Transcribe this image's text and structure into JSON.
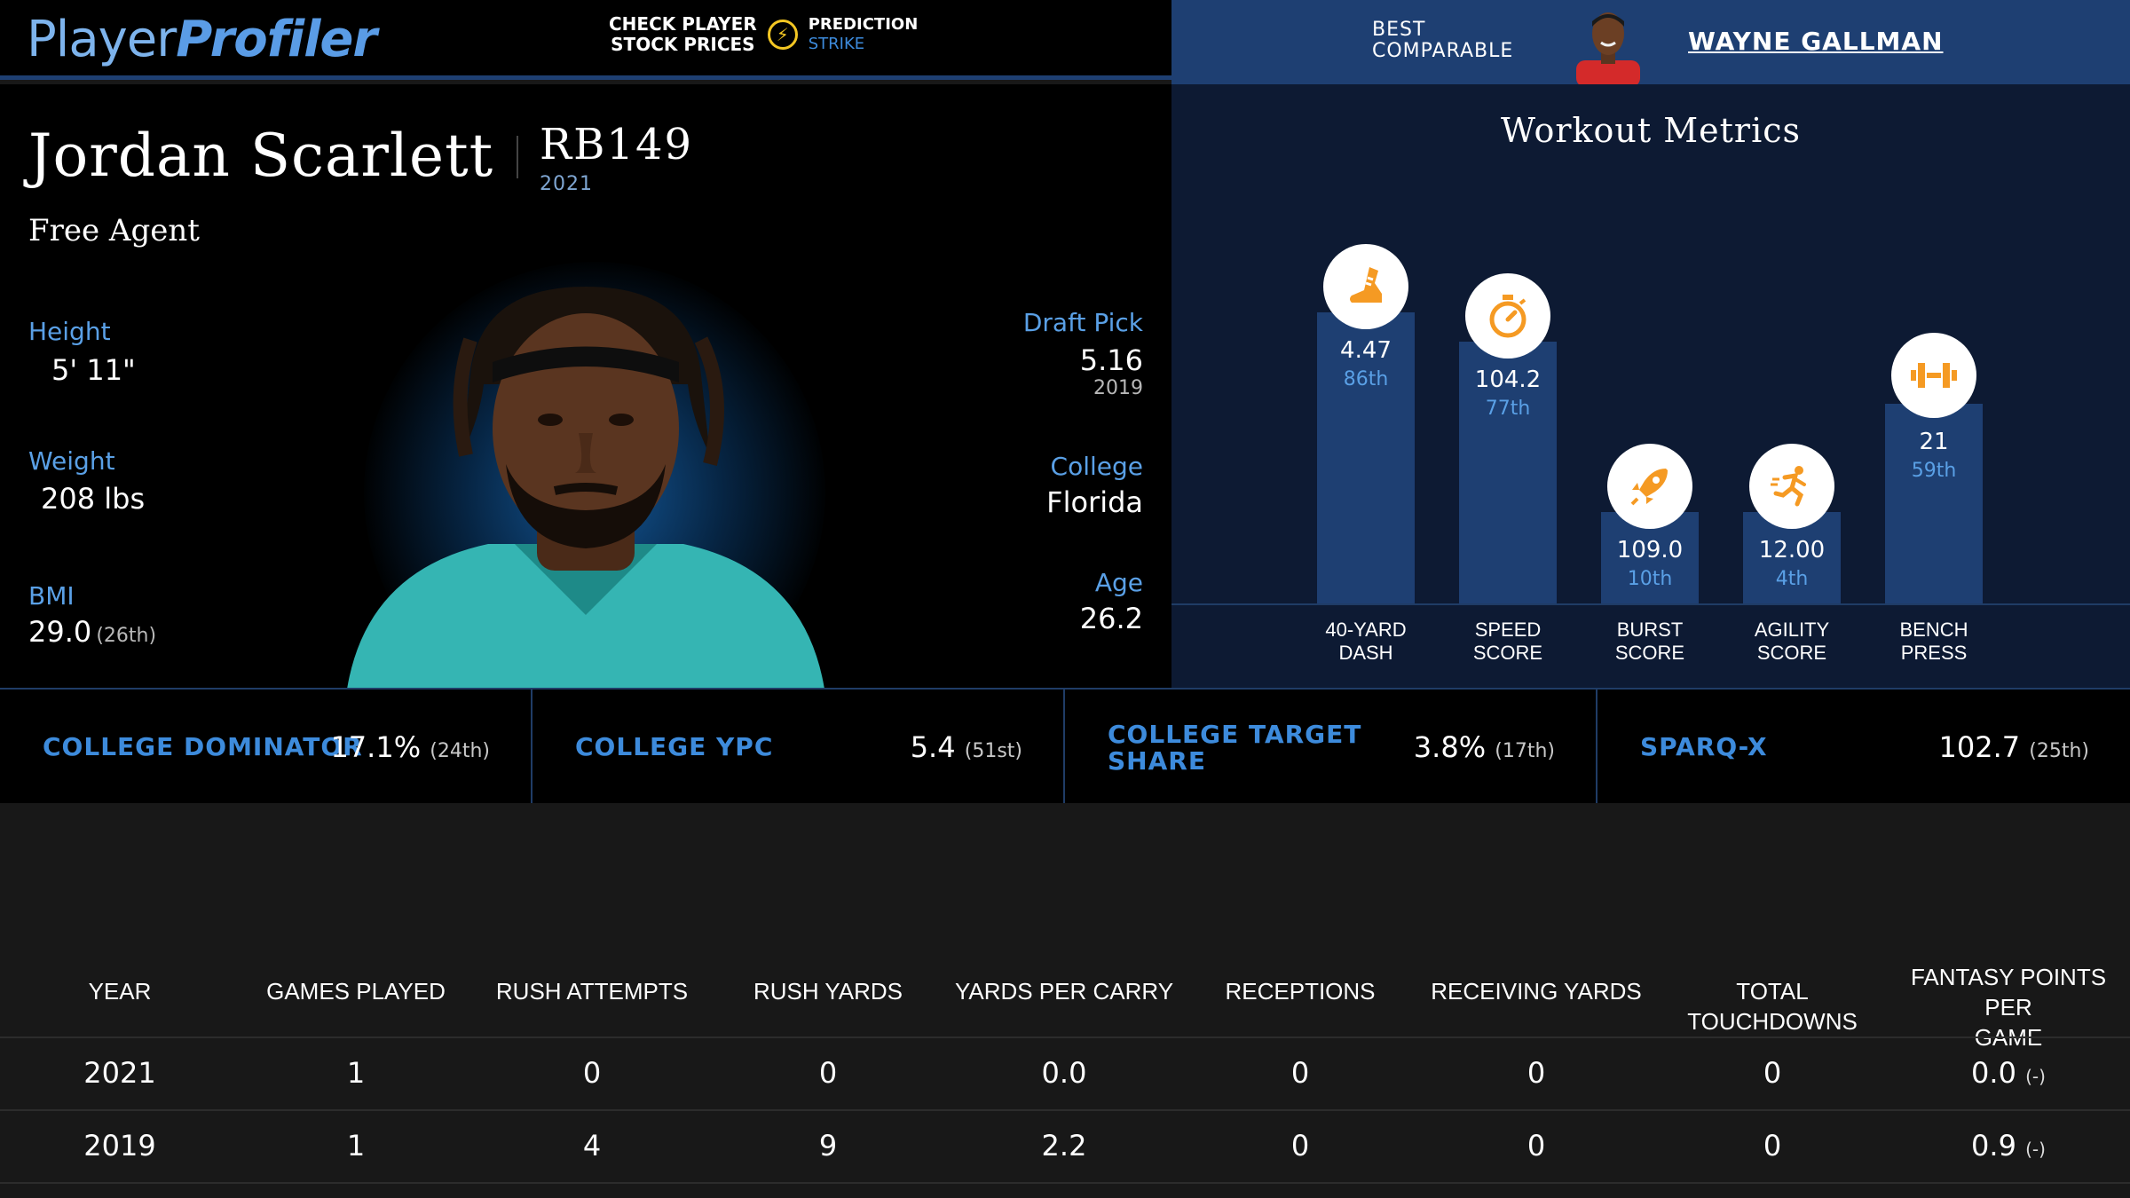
{
  "header": {
    "logo_part1": "Player",
    "logo_part2": "Profiler",
    "promo_line1": "CHECK PLAYER",
    "promo_line2": "STOCK PRICES",
    "promo_brand1": "PREDICTION",
    "promo_brand2": "STRIKE",
    "comparable_line1": "BEST",
    "comparable_line2": "COMPARABLE",
    "comparable_name": "WAYNE GALLMAN"
  },
  "player": {
    "name": "Jordan Scarlett",
    "position_rank": "RB149",
    "rank_year": "2021",
    "team": "Free Agent",
    "height_label": "Height",
    "height_value": "5' 11\"",
    "weight_label": "Weight",
    "weight_value": "208 lbs",
    "bmi_label": "BMI",
    "bmi_value": "29.0",
    "bmi_pct": "(26th)",
    "draft_label": "Draft Pick",
    "draft_value": "5.16",
    "draft_year": "2019",
    "college_label": "College",
    "college_value": "Florida",
    "age_label": "Age",
    "age_value": "26.2"
  },
  "workout": {
    "title": "Workout Metrics",
    "metrics": [
      {
        "value": "4.47",
        "pct": "86th",
        "label1": "40-YARD",
        "label2": "DASH",
        "icon": "shoe-icon",
        "percentile": 86
      },
      {
        "value": "104.2",
        "pct": "77th",
        "label1": "SPEED",
        "label2": "SCORE",
        "icon": "stopwatch-icon",
        "percentile": 77
      },
      {
        "value": "109.0",
        "pct": "10th",
        "label1": "BURST",
        "label2": "SCORE",
        "icon": "rocket-icon",
        "percentile": 10
      },
      {
        "value": "12.00",
        "pct": "4th",
        "label1": "AGILITY",
        "label2": "SCORE",
        "icon": "runner-icon",
        "percentile": 4
      },
      {
        "value": "21",
        "pct": "59th",
        "label1": "BENCH",
        "label2": "PRESS",
        "icon": "dumbbell-icon",
        "percentile": 59
      }
    ]
  },
  "college_metrics": [
    {
      "label": "COLLEGE DOMINATOR",
      "value": "17.1%",
      "pct": "(24th)"
    },
    {
      "label": "COLLEGE YPC",
      "value": "5.4",
      "pct": "(51st)"
    },
    {
      "label_line1": "COLLEGE TARGET",
      "label_line2": "SHARE",
      "value": "3.8%",
      "pct": "(17th)"
    },
    {
      "label": "SPARQ-X",
      "value": "102.7",
      "pct": "(25th)"
    }
  ],
  "stats_table": {
    "headers": [
      "YEAR",
      "GAMES PLAYED",
      "RUSH ATTEMPTS",
      "RUSH YARDS",
      "YARDS PER CARRY",
      "RECEPTIONS",
      "RECEIVING YARDS",
      "TOTAL TOUCHDOWNS",
      "FANTASY POINTS PER",
      "GAME"
    ],
    "rows": [
      {
        "year": "2021",
        "games": "1",
        "att": "0",
        "yds": "0",
        "ypc": "0.0",
        "rec": "0",
        "recyds": "0",
        "td": "0",
        "fpts": "0.0",
        "fpts_note": "(-)"
      },
      {
        "year": "2019",
        "games": "1",
        "att": "4",
        "yds": "9",
        "ypc": "2.2",
        "rec": "0",
        "recyds": "0",
        "td": "0",
        "fpts": "0.9",
        "fpts_note": "(-)"
      }
    ]
  },
  "colors": {
    "accent_blue": "#3d8bdc",
    "panel_blue": "#1e3f72",
    "icon_orange": "#f59a23"
  }
}
